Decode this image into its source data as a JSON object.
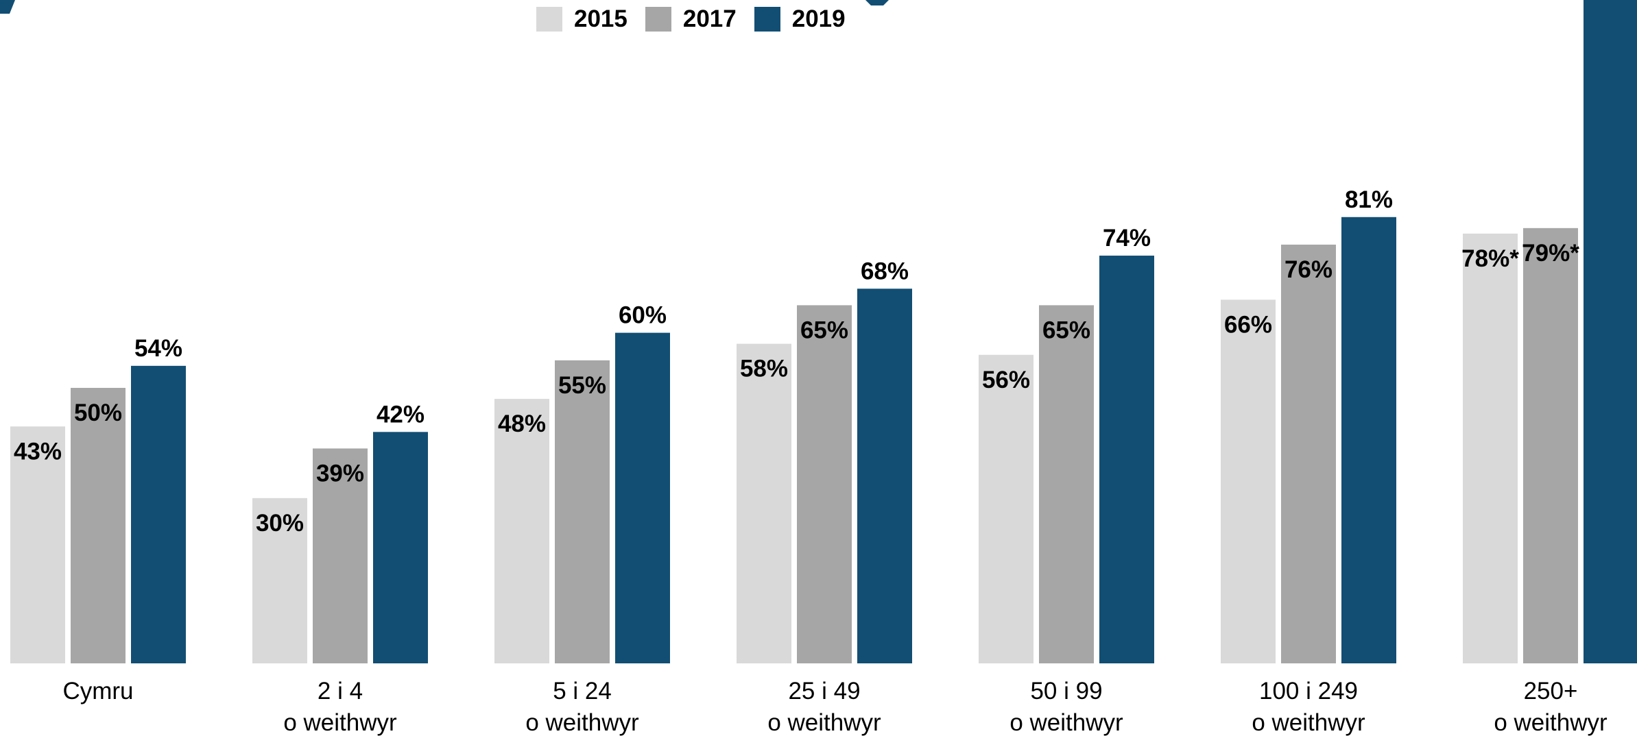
{
  "colors": {
    "s2015": "#d9d9d9",
    "s2017": "#a6a6a6",
    "s2019": "#124e73",
    "title": "#124e73"
  },
  "legend": [
    {
      "label": "2015",
      "color": "#d9d9d9"
    },
    {
      "label": "2017",
      "color": "#a6a6a6"
    },
    {
      "label": "2019",
      "color": "#124e73"
    }
  ],
  "chart_data": {
    "type": "bar",
    "title": "",
    "xlabel": "",
    "ylabel": "",
    "ylim": [
      0,
      100
    ],
    "categories": [
      [
        "Cymru"
      ],
      [
        "2 i 4",
        "o weithwyr"
      ],
      [
        "5 i 24",
        "o weithwyr"
      ],
      [
        "25 i 49",
        "o weithwyr"
      ],
      [
        "50 i 99",
        "o weithwyr"
      ],
      [
        "100 i 249",
        "o weithwyr"
      ],
      [
        "250+",
        "o weithwyr"
      ]
    ],
    "series": [
      {
        "name": "2015",
        "values": [
          43,
          30,
          48,
          58,
          56,
          66,
          78
        ],
        "labels": [
          "43%",
          "30%",
          "48%",
          "58%",
          "56%",
          "66%",
          "78%*"
        ]
      },
      {
        "name": "2017",
        "values": [
          50,
          39,
          55,
          65,
          65,
          76,
          79
        ],
        "labels": [
          "50%",
          "39%",
          "55%",
          "65%",
          "65%",
          "76%",
          "79%*"
        ]
      },
      {
        "name": "2019",
        "values": [
          54,
          42,
          60,
          68,
          74,
          81,
          null
        ],
        "labels": [
          "54%",
          "42%",
          "60%",
          "68%",
          "74%",
          "81%",
          ""
        ]
      }
    ],
    "legend_position": "top-center",
    "grid": false
  }
}
